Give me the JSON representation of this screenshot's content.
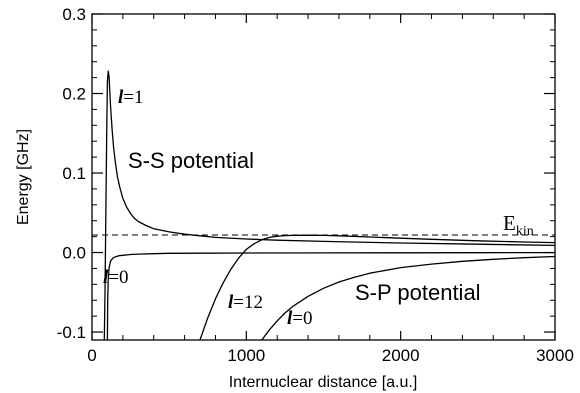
{
  "chart_data": {
    "type": "line",
    "xlabel": "Internuclear distance [a.u.]",
    "ylabel": "Energy [GHz]",
    "xlim": [
      0,
      3000
    ],
    "ylim": [
      -0.11,
      0.3
    ],
    "xticks": [
      {
        "value": 0,
        "label": "0"
      },
      {
        "value": 1000,
        "label": "1000"
      },
      {
        "value": 2000,
        "label": "2000"
      },
      {
        "value": 3000,
        "label": "3000"
      }
    ],
    "yticks": [
      {
        "value": -0.1,
        "label": "-0.1"
      },
      {
        "value": 0.0,
        "label": "0.0"
      },
      {
        "value": 0.1,
        "label": "0.1"
      },
      {
        "value": 0.2,
        "label": "0.2"
      },
      {
        "value": 0.3,
        "label": "0.3"
      }
    ],
    "grid": false,
    "series": [
      {
        "label_var": "l",
        "label_val": "=1",
        "style": "solid",
        "color": "#000000",
        "x": [
          80,
          84,
          88,
          92,
          96,
          100,
          105,
          110,
          115,
          120,
          130,
          140,
          150,
          165,
          180,
          200,
          225,
          250,
          275,
          300,
          350,
          400,
          450,
          500,
          600,
          700,
          800,
          1000,
          1200,
          1500,
          2000,
          2500,
          3000
        ],
        "y": [
          -0.11,
          -0.05,
          0.02,
          0.09,
          0.16,
          0.215,
          0.228,
          0.222,
          0.205,
          0.185,
          0.155,
          0.132,
          0.115,
          0.095,
          0.082,
          0.068,
          0.057,
          0.049,
          0.043,
          0.039,
          0.034,
          0.03,
          0.028,
          0.026,
          0.023,
          0.021,
          0.019,
          0.017,
          0.0155,
          0.014,
          0.012,
          0.0105,
          0.009
        ]
      },
      {
        "label_var": "l",
        "label_val": "=0",
        "style": "solid",
        "color": "#000000",
        "x": [
          100,
          102,
          105,
          110,
          120,
          135,
          150,
          175,
          200,
          250,
          300,
          400,
          500,
          700,
          1000,
          1500,
          2000,
          2500,
          3000
        ],
        "y": [
          -0.11,
          -0.06,
          -0.035,
          -0.02,
          -0.011,
          -0.007,
          -0.0055,
          -0.004,
          -0.0035,
          -0.0025,
          -0.002,
          -0.0015,
          -0.001,
          -0.0008,
          -0.0006,
          -0.0004,
          -0.0003,
          -0.0002,
          -0.0001
        ]
      },
      {
        "label_var": "l",
        "label_val": "=12",
        "style": "solid",
        "color": "#000000",
        "x": [
          700,
          750,
          800,
          850,
          900,
          950,
          1000,
          1050,
          1100,
          1150,
          1200,
          1250,
          1300,
          1400,
          1500,
          1600,
          1800,
          2000,
          2200,
          2500,
          2800,
          3000
        ],
        "y": [
          -0.11,
          -0.082,
          -0.058,
          -0.038,
          -0.021,
          -0.007,
          0.004,
          0.011,
          0.016,
          0.019,
          0.0205,
          0.0213,
          0.0216,
          0.0218,
          0.0215,
          0.021,
          0.0196,
          0.018,
          0.0166,
          0.0148,
          0.0132,
          0.0125
        ]
      },
      {
        "label_var": "l",
        "label_val": "=0",
        "style": "solid",
        "color": "#000000",
        "x": [
          1100,
          1150,
          1200,
          1250,
          1300,
          1400,
          1500,
          1600,
          1700,
          1800,
          2000,
          2200,
          2400,
          2600,
          2800,
          3000
        ],
        "y": [
          -0.11,
          -0.097,
          -0.086,
          -0.076,
          -0.068,
          -0.055,
          -0.045,
          -0.037,
          -0.031,
          -0.026,
          -0.019,
          -0.0145,
          -0.011,
          -0.0085,
          -0.0065,
          -0.005
        ]
      }
    ],
    "reference_lines": [
      {
        "y": 0.022,
        "style": "dashed",
        "label_main": "E",
        "label_sub": "kin"
      }
    ],
    "annotations": [
      {
        "text": "S-S potential"
      },
      {
        "text": "S-P potential"
      }
    ]
  }
}
